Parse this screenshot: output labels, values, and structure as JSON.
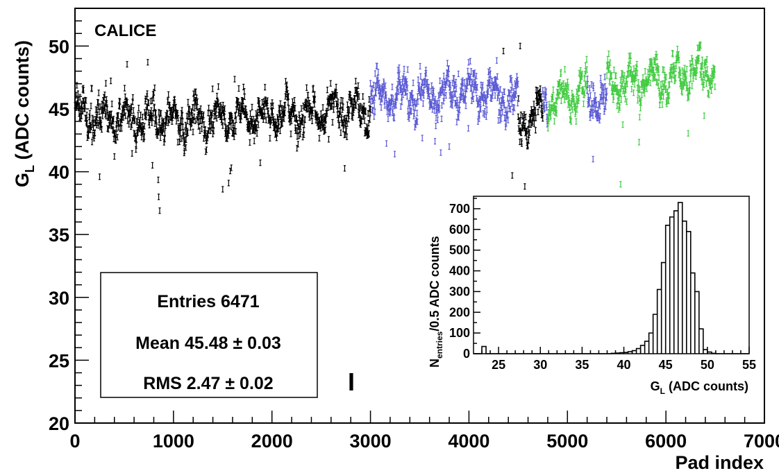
{
  "chart_data": [
    {
      "type": "scatter",
      "title": "CALICE",
      "xlabel": "Pad index",
      "ylabel_main": "G",
      "ylabel_sub": "L",
      "ylabel_rest": " (ADC counts)",
      "xlim": [
        0,
        7000
      ],
      "ylim": [
        20,
        53
      ],
      "x_ticks": [
        "0",
        "1000",
        "2000",
        "3000",
        "4000",
        "5000",
        "6000",
        "7000"
      ],
      "y_ticks": [
        "20",
        "25",
        "30",
        "35",
        "40",
        "45",
        "50"
      ],
      "series": [
        {
          "color": "#000000",
          "segments": [
            [
              0,
              3000
            ],
            [
              4500,
              4750
            ]
          ],
          "profile": [
            [
              0,
              44.5
            ],
            [
              1000,
              44.0
            ],
            [
              2000,
              44.5
            ],
            [
              3000,
              45.0
            ],
            [
              4500,
              43.5
            ],
            [
              4750,
              45.0
            ]
          ]
        },
        {
          "color": "#5b5bd6",
          "segments": [
            [
              3000,
              4500
            ],
            [
              4750,
              4800
            ],
            [
              5200,
              5400
            ]
          ],
          "profile": [
            [
              3000,
              46.0
            ],
            [
              3500,
              46.0
            ],
            [
              4000,
              46.5
            ],
            [
              4500,
              45.5
            ],
            [
              5200,
              45.5
            ],
            [
              5400,
              46.0
            ]
          ]
        },
        {
          "color": "#44cc44",
          "segments": [
            [
              4800,
              5200
            ],
            [
              5400,
              6500
            ]
          ],
          "profile": [
            [
              4800,
              45.5
            ],
            [
              5200,
              46.5
            ],
            [
              5400,
              47.0
            ],
            [
              6000,
              47.5
            ],
            [
              6500,
              48.0
            ]
          ]
        }
      ],
      "outliers": [
        {
          "x": 250,
          "y": 39.6,
          "color": "#000000"
        },
        {
          "x": 850,
          "y": 38.0,
          "color": "#000000"
        },
        {
          "x": 860,
          "y": 36.9,
          "color": "#000000"
        },
        {
          "x": 1500,
          "y": 38.6,
          "color": "#000000"
        },
        {
          "x": 1560,
          "y": 39.1,
          "color": "#000000"
        },
        {
          "x": 4350,
          "y": 49.6,
          "color": "#000000"
        },
        {
          "x": 4520,
          "y": 50.0,
          "color": "#000000"
        },
        {
          "x": 4440,
          "y": 39.7,
          "color": "#000000"
        },
        {
          "x": 5540,
          "y": 39.0,
          "color": "#44cc44"
        },
        {
          "x": 3800,
          "y": 42.0,
          "color": "#5b5bd6"
        },
        {
          "x": 5260,
          "y": 41.0,
          "color": "#5b5bd6"
        }
      ],
      "stats": {
        "entries_label": "Entries 6471",
        "mean_label": "Mean 45.48 ± 0.03",
        "rms_label": "RMS 2.47 ± 0.02"
      },
      "legend_marker": "I"
    },
    {
      "type": "histogram",
      "xlabel_main": "G",
      "xlabel_sub": "L",
      "xlabel_rest": " (ADC counts)",
      "ylabel_main": "N",
      "ylabel_sub": "entries",
      "ylabel_rest": "/0.5 ADC counts",
      "xlim": [
        22,
        55
      ],
      "ylim": [
        0,
        760
      ],
      "x_ticks": [
        "25",
        "30",
        "35",
        "40",
        "45",
        "50",
        "55"
      ],
      "y_ticks": [
        "0",
        "100",
        "200",
        "300",
        "400",
        "500",
        "600",
        "700"
      ],
      "bin_width": 0.5,
      "bins": [
        [
          23.0,
          35
        ],
        [
          38.5,
          2
        ],
        [
          39.0,
          3
        ],
        [
          39.5,
          5
        ],
        [
          40.0,
          6
        ],
        [
          40.5,
          10
        ],
        [
          41.0,
          15
        ],
        [
          41.5,
          25
        ],
        [
          42.0,
          40
        ],
        [
          42.5,
          60
        ],
        [
          43.0,
          100
        ],
        [
          43.5,
          190
        ],
        [
          44.0,
          310
        ],
        [
          44.5,
          440
        ],
        [
          45.0,
          620
        ],
        [
          45.5,
          660
        ],
        [
          46.0,
          690
        ],
        [
          46.5,
          730
        ],
        [
          47.0,
          640
        ],
        [
          47.5,
          590
        ],
        [
          48.0,
          390
        ],
        [
          48.5,
          300
        ],
        [
          49.0,
          120
        ],
        [
          49.5,
          20
        ],
        [
          50.0,
          8
        ],
        [
          50.5,
          2
        ]
      ]
    }
  ]
}
